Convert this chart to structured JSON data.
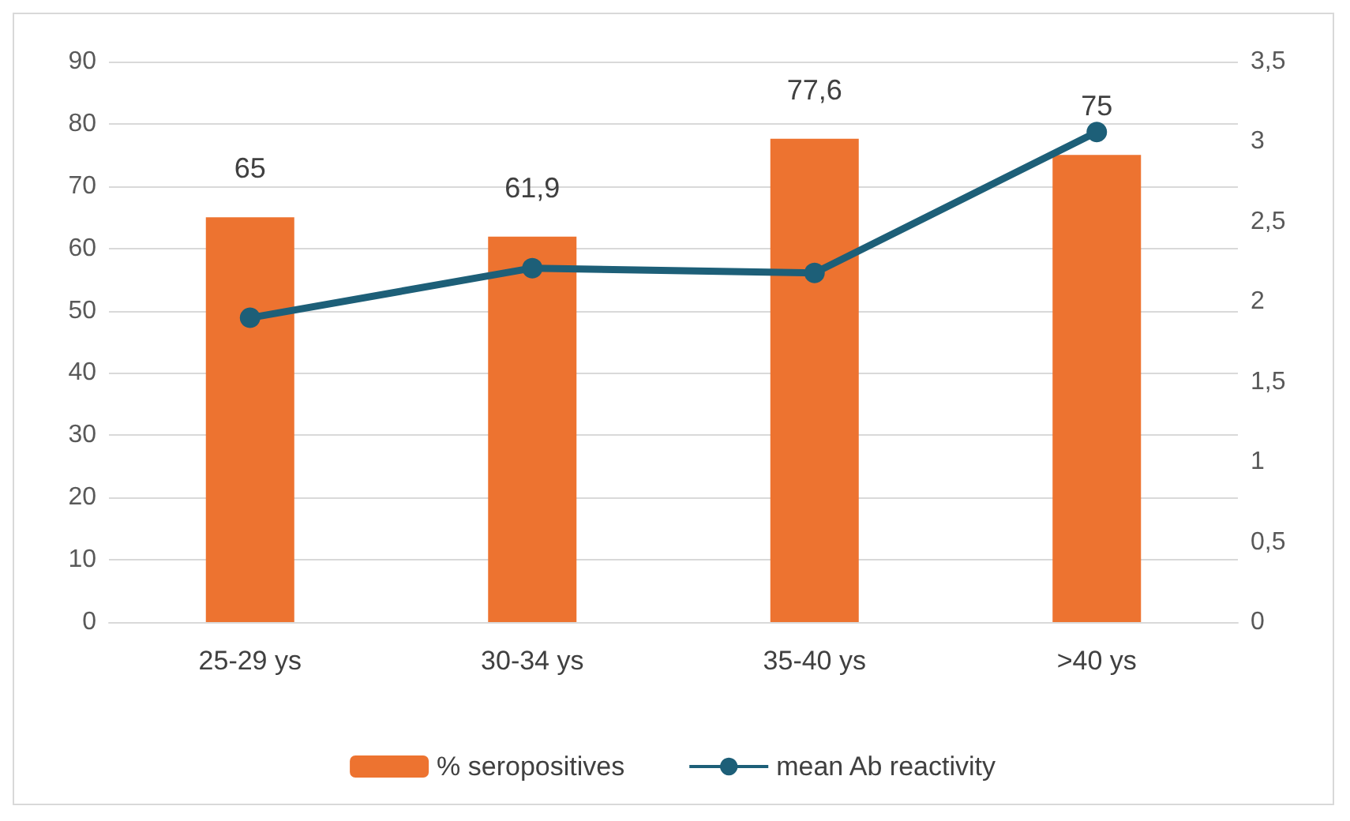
{
  "chart_data": {
    "type": "bar",
    "categories": [
      "25-29 ys",
      "30-34 ys",
      "35-40 ys",
      ">40 ys"
    ],
    "series": [
      {
        "name": "% seropositives",
        "color": "#ed7330",
        "values": [
          65,
          61.9,
          77.6,
          75
        ],
        "value_labels": [
          "65",
          "61,9",
          "77,6",
          "75"
        ]
      },
      {
        "name": "mean Ab reactivity",
        "type": "line",
        "axis": "y2",
        "color": "#1d5f78",
        "values": [
          1.9,
          2.21,
          2.18,
          3.06
        ],
        "marker": "circle"
      }
    ],
    "ylim": [
      0,
      90
    ],
    "yticks": [
      0,
      10,
      20,
      30,
      40,
      50,
      60,
      70,
      80,
      90
    ],
    "y2lim": [
      0,
      3.5
    ],
    "y2ticks": [
      0,
      {
        "value": 0.5,
        "label": "0,5"
      },
      1,
      {
        "value": 1.5,
        "label": "1,5"
      },
      2,
      {
        "value": 2.5,
        "label": "2,5"
      },
      3,
      {
        "value": 3.5,
        "label": "3,5"
      }
    ],
    "grid": "y",
    "legend": "bottom"
  }
}
